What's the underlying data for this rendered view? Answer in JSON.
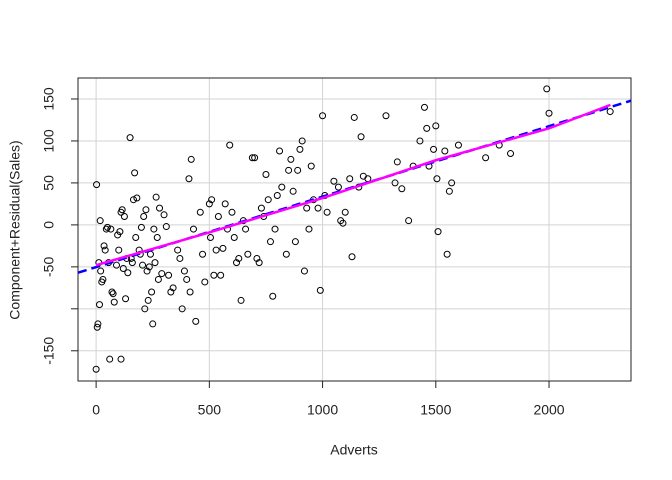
{
  "chart_data": {
    "type": "scatter",
    "xlabel": "Adverts",
    "ylabel": "Component+Residual(Sales)",
    "xlim": [
      -80,
      2362
    ],
    "ylim": [
      -186,
      175
    ],
    "xticks": [
      0,
      500,
      1000,
      1500,
      2000
    ],
    "yticks": [
      -150,
      {
        "value": -100,
        "label": null
      },
      -50,
      0,
      50,
      100,
      150
    ],
    "grid": true,
    "color": "#000000",
    "x": [
      0,
      2,
      5,
      8,
      12,
      15,
      18,
      20,
      25,
      30,
      35,
      40,
      45,
      50,
      55,
      60,
      65,
      70,
      75,
      80,
      90,
      95,
      100,
      105,
      110,
      110,
      115,
      120,
      125,
      130,
      135,
      140,
      150,
      155,
      160,
      165,
      170,
      175,
      180,
      190,
      195,
      200,
      205,
      210,
      215,
      220,
      225,
      230,
      235,
      240,
      245,
      250,
      255,
      260,
      265,
      270,
      275,
      280,
      290,
      300,
      310,
      320,
      330,
      340,
      360,
      370,
      380,
      390,
      400,
      410,
      415,
      420,
      430,
      440,
      460,
      470,
      480,
      500,
      505,
      510,
      520,
      530,
      540,
      550,
      560,
      570,
      580,
      590,
      600,
      610,
      620,
      630,
      640,
      650,
      660,
      670,
      690,
      700,
      710,
      720,
      730,
      740,
      750,
      760,
      770,
      780,
      790,
      800,
      810,
      820,
      840,
      850,
      860,
      870,
      880,
      890,
      900,
      910,
      920,
      930,
      940,
      950,
      960,
      980,
      990,
      1000,
      1010,
      1020,
      1050,
      1070,
      1080,
      1090,
      1100,
      1120,
      1130,
      1140,
      1160,
      1170,
      1180,
      1200,
      1280,
      1320,
      1330,
      1350,
      1380,
      1400,
      1430,
      1450,
      1460,
      1470,
      1490,
      1500,
      1505,
      1510,
      1540,
      1550,
      1560,
      1570,
      1600,
      1720,
      1780,
      1830,
      1990,
      2000,
      2270
    ],
    "y": [
      -172,
      48,
      -122,
      -118,
      -45,
      -95,
      5,
      -55,
      -68,
      -65,
      -25,
      -30,
      -5,
      -3,
      -45,
      -160,
      -5,
      -80,
      -82,
      -92,
      -48,
      -12,
      -30,
      -8,
      -160,
      15,
      18,
      -52,
      10,
      -88,
      -40,
      -57,
      104,
      -40,
      -45,
      30,
      62,
      -15,
      32,
      -30,
      -35,
      -3,
      -48,
      10,
      -100,
      18,
      -55,
      -90,
      -50,
      -35,
      -80,
      -118,
      -5,
      -45,
      33,
      -15,
      -65,
      20,
      -58,
      12,
      -2,
      -60,
      -80,
      -75,
      -30,
      -40,
      -100,
      -55,
      -65,
      55,
      -80,
      78,
      -5,
      -115,
      15,
      -35,
      -68,
      25,
      -15,
      30,
      -60,
      -30,
      10,
      -60,
      -28,
      25,
      -5,
      95,
      15,
      -15,
      -45,
      -40,
      -90,
      5,
      -5,
      -35,
      80,
      80,
      -40,
      -45,
      20,
      10,
      60,
      30,
      -20,
      -85,
      -5,
      35,
      88,
      45,
      -35,
      65,
      78,
      40,
      -20,
      65,
      90,
      100,
      -55,
      20,
      -5,
      70,
      30,
      20,
      -78,
      130,
      35,
      15,
      52,
      45,
      5,
      2,
      15,
      55,
      -38,
      128,
      45,
      105,
      58,
      55,
      130,
      50,
      75,
      43,
      5,
      70,
      100,
      140,
      115,
      70,
      90,
      118,
      55,
      -8,
      88,
      -35,
      40,
      50,
      95,
      80,
      95,
      85,
      162,
      133,
      135
    ],
    "lines": [
      {
        "color": "#0000ff",
        "dashed": true,
        "x": [
          -80,
          2362
        ],
        "values": [
          -57,
          148
        ]
      },
      {
        "color": "#ff00ff",
        "dashed": false,
        "x": [
          0,
          500,
          1000,
          1500,
          2000,
          2271
        ],
        "values": [
          -48,
          -9,
          32,
          77,
          115,
          143
        ]
      }
    ]
  }
}
